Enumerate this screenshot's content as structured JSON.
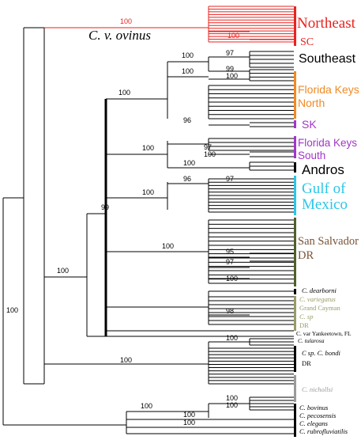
{
  "colors": {
    "default": "#000000",
    "northeast": "#e8231f",
    "florida_keys_north": "#f08a24",
    "sk": "#a335c9",
    "florida_keys_south": "#a335c9",
    "gulf": "#2bc7e8",
    "san_salvador": "#7a5237",
    "bar_green": "#4f5f2a",
    "grand_cayman": "#9a9a6a",
    "nichollsi": "#9a9a9a"
  },
  "support_values": {
    "root": "100",
    "clade_main": "100",
    "clade_99": "99",
    "northeast": "100",
    "sc": "100",
    "southeast_a": "100",
    "southeast_b": "97",
    "fkn_a": "100",
    "fkn_b": "99",
    "fkn_c": "100",
    "fkn_main": "100",
    "sk_96": "96",
    "fks_main": "100",
    "fks_97": "97",
    "fks_100": "100",
    "andros": "100",
    "gulf_main": "100",
    "gulf_96": "96",
    "gulf_97": "97",
    "ss_main": "100",
    "ss_95": "95",
    "ss_97": "97",
    "ss_100": "100",
    "cayman_98": "98",
    "bondi_top": "100",
    "bondi_main": "100",
    "bottom_main": "100",
    "bovinus_a": "100",
    "bovinus_b": "100",
    "pecos": "100",
    "elegans": "100"
  },
  "labels": {
    "ovinus": "C. v. ovinus",
    "northeast": "Northeast",
    "sc": "SC",
    "southeast": "Southeast",
    "fkn_line1": "Florida Keys",
    "fkn_line2": "North",
    "sk": "SK",
    "fks_line1": "Florida Keys",
    "fks_line2": "South",
    "andros": "Andros",
    "gulf_line1": "Gulf of",
    "gulf_line2": "Mexico",
    "ss_line1": "San Salvador",
    "ss_line2": "DR",
    "dearborni": "C. dearborni",
    "variegatus": "C. variegatus",
    "grand_cayman": "Grand Cayman",
    "c_sp": "C. sp",
    "dr_small": "DR",
    "yankeetown": "C. var Yankeetown, FL",
    "tularosa": "C. tularosa",
    "bondi_line1": "C sp. C. bondi",
    "bondi_line2": "DR",
    "nichollsi": "C. nichollsi",
    "bovinus": "C. bovinus",
    "pecosensis": "C. pecosensis",
    "elegans": "C. elegans",
    "rubrofluviatilis": "C. rubrofluviatilis"
  }
}
